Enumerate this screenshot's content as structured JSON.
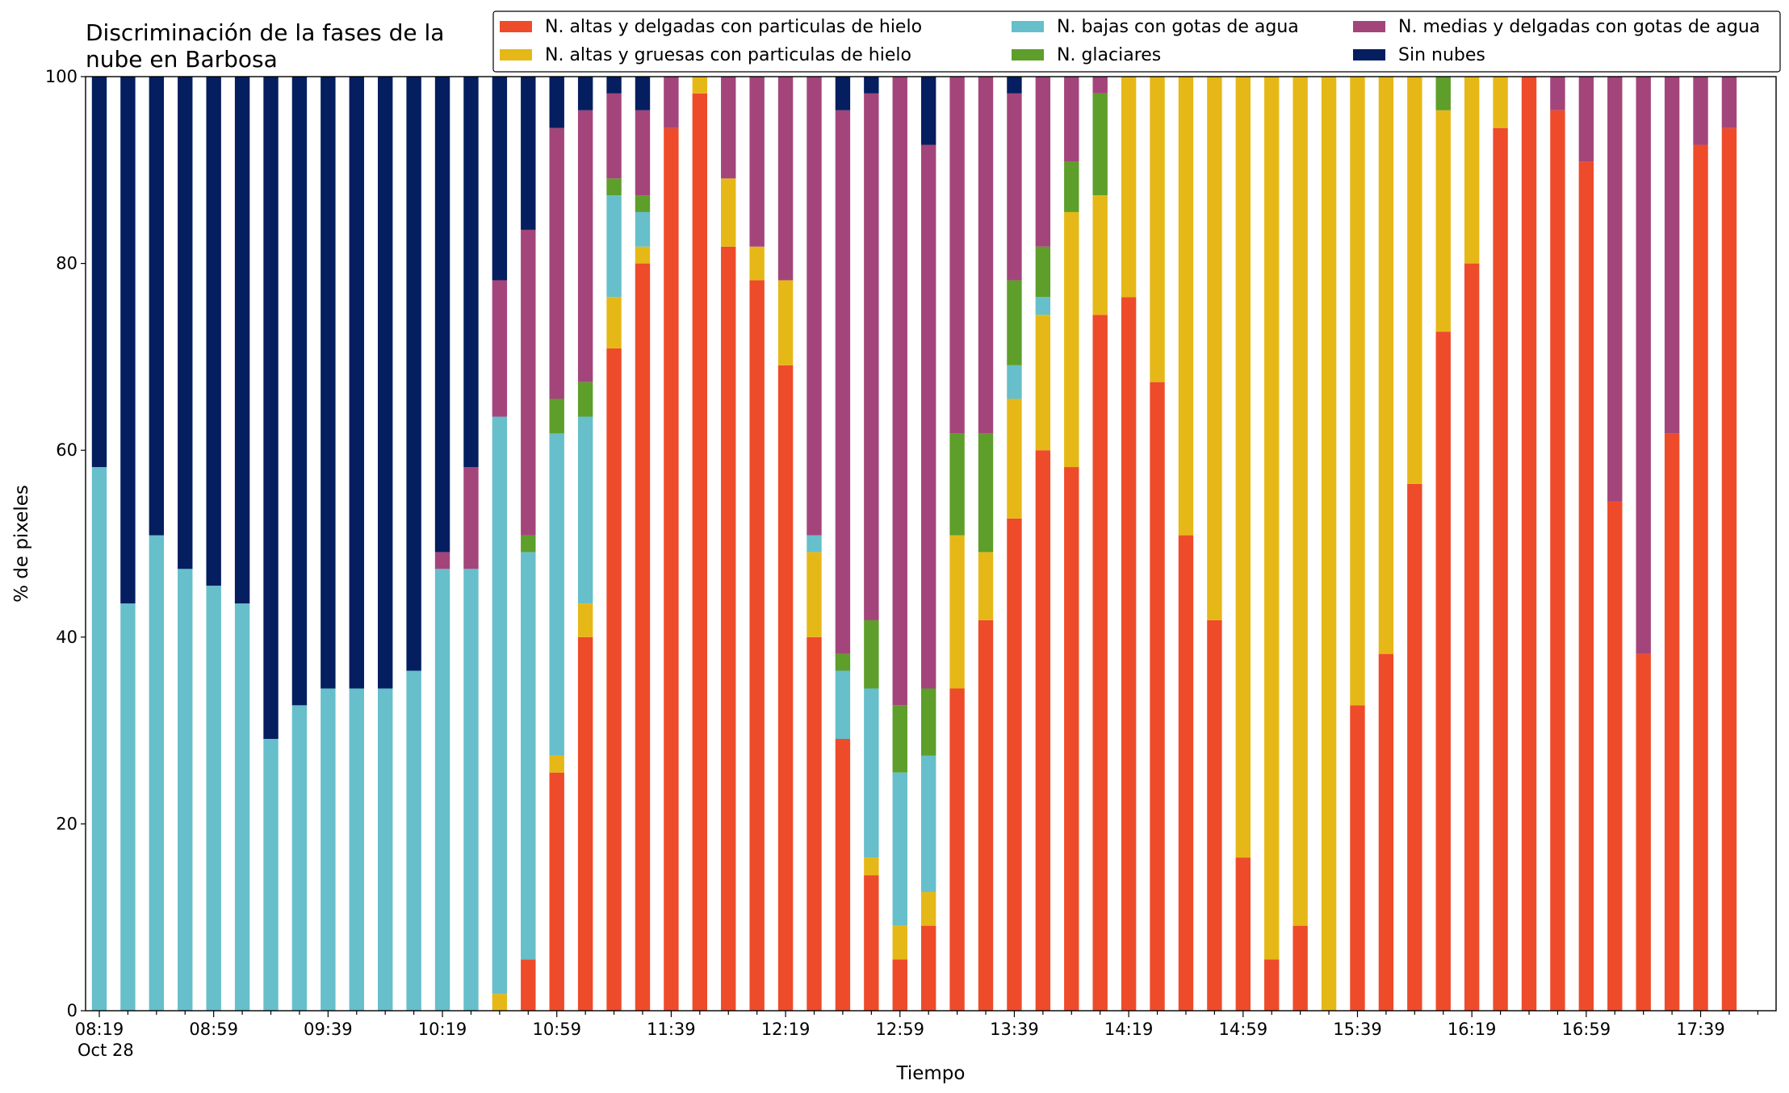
{
  "chart_data": {
    "type": "stacked_bar",
    "title": [
      "Discriminación de la fases de la",
      "nube en Barbosa"
    ],
    "xlabel": "Tiempo",
    "ylabel": "% de pixeles",
    "date_label": "Oct 28",
    "categories": [
      "08:19",
      null,
      null,
      null,
      "08:59",
      null,
      null,
      null,
      "09:39",
      null,
      null,
      null,
      "10:19",
      null,
      null,
      null,
      "10:59",
      null,
      null,
      null,
      "11:39",
      null,
      null,
      null,
      "12:19",
      null,
      null,
      null,
      "12:59",
      null,
      null,
      null,
      "13:39",
      null,
      null,
      null,
      "14:19",
      null,
      null,
      null,
      "14:59",
      null,
      null,
      null,
      "15:39",
      null,
      null,
      null,
      "16:19",
      null,
      null,
      null,
      "16:59",
      null,
      null,
      null,
      "17:39",
      null
    ],
    "ylim": [
      0,
      100
    ],
    "yticks": [
      0,
      20,
      40,
      60,
      80,
      100
    ],
    "legend": "upper right",
    "series": [
      {
        "name": "N. altas y delgadas con particulas de hielo",
        "color": "#ee4b2b",
        "values": [
          0,
          0,
          0,
          0,
          0,
          0,
          0,
          0,
          0,
          0,
          0,
          0,
          0,
          0,
          0,
          5.5,
          25.5,
          40,
          70.9,
          80,
          94.5,
          98.2,
          81.8,
          78.2,
          69.1,
          40,
          29.1,
          14.5,
          5.5,
          9.1,
          34.5,
          41.8,
          52.7,
          60,
          58.2,
          74.5,
          76.4,
          67.3,
          50.9,
          41.8,
          16.4,
          5.5,
          9.1,
          0,
          32.7,
          38.2,
          56.4,
          72.7,
          80,
          94.5,
          100,
          96.4,
          90.9,
          54.5,
          38.2,
          61.8,
          92.7,
          94.5
        ]
      },
      {
        "name": "N. altas y gruesas con particulas de hielo",
        "color": "#e6b817",
        "values": [
          0,
          0,
          0,
          0,
          0,
          0,
          0,
          0,
          0,
          0,
          0,
          0,
          0,
          0,
          1.8,
          0,
          1.8,
          3.6,
          5.5,
          1.8,
          0,
          1.8,
          7.3,
          3.6,
          9.1,
          9.1,
          0,
          1.9,
          3.6,
          3.6,
          16.4,
          7.3,
          12.8,
          14.5,
          27.3,
          12.8,
          23.6,
          32.7,
          49.1,
          58.2,
          83.6,
          94.5,
          90.9,
          100,
          67.3,
          61.8,
          43.6,
          23.7,
          20,
          5.5,
          0,
          0,
          0,
          0,
          0,
          0,
          0,
          0
        ]
      },
      {
        "name": "N. bajas con gotas de agua",
        "color": "#66bfcb",
        "values": [
          58.2,
          43.6,
          50.9,
          47.3,
          45.5,
          43.6,
          29.1,
          32.7,
          34.5,
          34.5,
          34.5,
          36.4,
          47.3,
          47.3,
          61.8,
          43.6,
          34.5,
          20,
          10.9,
          3.7,
          0,
          0,
          0,
          0,
          0,
          1.8,
          7.3,
          18.1,
          16.4,
          14.6,
          0,
          0,
          3.6,
          1.9,
          0,
          0,
          0,
          0,
          0,
          0,
          0,
          0,
          0,
          0,
          0,
          0,
          0,
          0,
          0,
          0,
          0,
          0,
          0,
          0,
          0,
          0,
          0,
          0
        ]
      },
      {
        "name": "N. glaciares",
        "color": "#5e9e2b",
        "values": [
          0,
          0,
          0,
          0,
          0,
          0,
          0,
          0,
          0,
          0,
          0,
          0,
          0,
          0,
          0,
          1.8,
          3.7,
          3.7,
          1.8,
          1.8,
          0,
          0,
          0,
          0,
          0,
          0,
          1.8,
          7.3,
          7.2,
          7.2,
          10.9,
          12.7,
          9.1,
          5.4,
          5.4,
          10.9,
          0,
          0,
          0,
          0,
          0,
          0,
          0,
          0,
          0,
          0,
          0,
          3.6,
          0,
          0,
          0,
          0,
          0,
          0,
          0,
          0,
          0,
          0
        ]
      },
      {
        "name": "N. medias y delgadas con gotas de agua",
        "color": "#a3457b",
        "values": [
          0,
          0,
          0,
          0,
          0,
          0,
          0,
          0,
          0,
          0,
          0,
          0,
          1.8,
          10.9,
          14.6,
          32.7,
          29,
          29.1,
          9.1,
          9.1,
          5.5,
          0,
          10.9,
          18.2,
          21.8,
          49.1,
          58.2,
          56.4,
          67.3,
          58.2,
          38.2,
          38.2,
          20,
          18.2,
          9.1,
          1.8,
          0,
          0,
          0,
          0,
          0,
          0,
          0,
          0,
          0,
          0,
          0,
          0,
          0,
          0,
          0,
          3.6,
          9.1,
          45.5,
          61.8,
          38.2,
          7.3,
          5.5
        ]
      },
      {
        "name": "Sin nubes",
        "color": "#041e5f",
        "values": [
          41.8,
          56.4,
          49.1,
          52.7,
          54.5,
          56.4,
          70.9,
          67.3,
          65.5,
          65.5,
          65.5,
          63.6,
          50.9,
          41.8,
          21.8,
          16.4,
          5.5,
          3.6,
          1.8,
          3.6,
          0,
          0,
          0,
          0,
          0,
          0,
          3.6,
          1.8,
          0,
          7.3,
          0,
          0,
          1.8,
          0,
          0,
          0,
          0,
          0,
          0,
          0,
          0,
          0,
          0,
          0,
          0,
          0,
          0,
          0,
          0,
          0,
          0,
          0,
          0,
          0,
          0,
          0,
          0,
          0
        ]
      }
    ]
  }
}
